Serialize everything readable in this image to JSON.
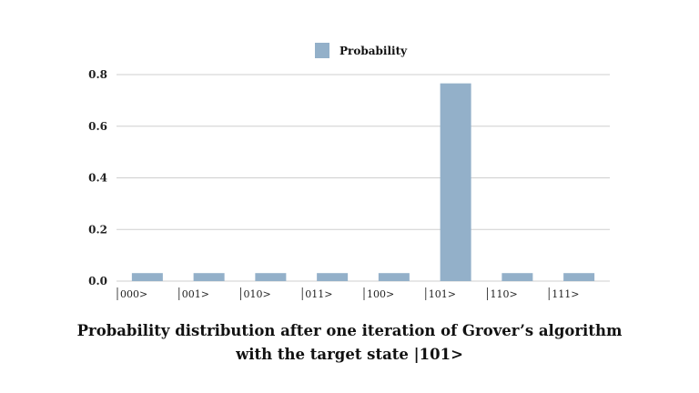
{
  "chart_data": {
    "type": "bar",
    "categories": [
      "|000>",
      "|001>",
      "|010>",
      "|011>",
      "|100>",
      "|101>",
      "|110>",
      "|111>"
    ],
    "series": [
      {
        "name": "Probability",
        "values": [
          0.031,
          0.031,
          0.031,
          0.031,
          0.031,
          0.766,
          0.031,
          0.031
        ],
        "color": "#93b0c9"
      }
    ],
    "yticks": [
      "0.0",
      "0.2",
      "0.4",
      "0.6",
      "0.8"
    ],
    "ylim": [
      0,
      0.8
    ],
    "grid": true,
    "legend": "top-center",
    "xlabel": "",
    "ylabel": ""
  },
  "caption": {
    "line1": "Probability distribution after one iteration of Grover’s algorithm",
    "line2": "with the target state |101>"
  }
}
